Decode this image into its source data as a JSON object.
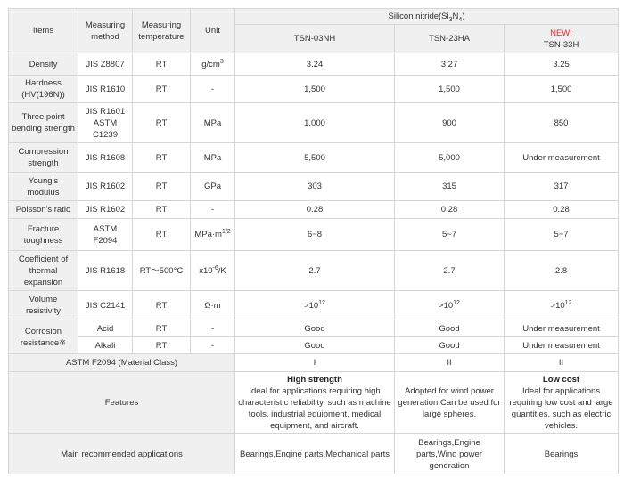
{
  "header": {
    "items": "Items",
    "method": "Measuring method",
    "temperature": "Measuring temperature",
    "unit": "Unit",
    "material_prefix": "Silicon nitride(Si",
    "material_sub1": "3",
    "material_mid": "N",
    "material_sub2": "4",
    "material_suffix": ")",
    "products": [
      {
        "name": "TSN-03NH"
      },
      {
        "name": "TSN-23HA"
      },
      {
        "name": "TSN-33H",
        "badge": "NEW!"
      }
    ]
  },
  "rows": [
    {
      "item": "Density",
      "method": "JIS Z8807",
      "temp": "RT",
      "unit": "g/cm",
      "unit_sup": "3",
      "values": [
        "3.24",
        "3.27",
        "3.25"
      ]
    },
    {
      "item": "Hardness (HV(196N))",
      "method": "JIS R1610",
      "temp": "RT",
      "unit": "-",
      "values": [
        "1,500",
        "1,500",
        "1,500"
      ]
    },
    {
      "item": "Three point bending strength",
      "method": "JIS R1601 ASTM C1239",
      "temp": "RT",
      "unit": "MPa",
      "values": [
        "1,000",
        "900",
        "850"
      ]
    },
    {
      "item": "Compression strength",
      "method": "JIS R1608",
      "temp": "RT",
      "unit": "MPa",
      "values": [
        "5,500",
        "5,000",
        "Under measurement"
      ]
    },
    {
      "item": "Young's modulus",
      "method": "JIS R1602",
      "temp": "RT",
      "unit": "GPa",
      "values": [
        "303",
        "315",
        "317"
      ]
    },
    {
      "item": "Poisson's ratio",
      "method": "JIS R1602",
      "temp": "RT",
      "unit": "-",
      "values": [
        "0.28",
        "0.28",
        "0.28"
      ]
    },
    {
      "item": "Fracture toughness",
      "method": "ASTM F2094",
      "temp": "RT",
      "unit": "MPa·m",
      "unit_sup": "1/2",
      "values": [
        "6~8",
        "5~7",
        "5~7"
      ]
    },
    {
      "item": "Coefficient of thermal expansion",
      "method": "JIS R1618",
      "temp": "RT～500°C",
      "unit": "x10",
      "unit_sup": "-6",
      "unit_suffix": "/K",
      "values": [
        "2.7",
        "2.7",
        "2.8"
      ]
    },
    {
      "item": "Volume resistivity",
      "method": "JIS C2141",
      "temp": "RT",
      "unit": "Ω·m",
      "values": [
        ">10",
        ">10",
        ">10"
      ],
      "value_sup": "12"
    }
  ],
  "corrosion": {
    "item": "Corrosion resistance※",
    "rows": [
      {
        "method": "Acid",
        "temp": "RT",
        "unit": "-",
        "values": [
          "Good",
          "Good",
          "Under measurement"
        ]
      },
      {
        "method": "Alkali",
        "temp": "RT",
        "unit": "-",
        "values": [
          "Good",
          "Good",
          "Under measurement"
        ]
      }
    ]
  },
  "astm": {
    "label": "ASTM F2094 (Material Class)",
    "values": [
      "I",
      "II",
      "II"
    ]
  },
  "features": {
    "label": "Features",
    "values": [
      {
        "title": "High strength",
        "text": "Ideal for applications requiring high characteristic reliability, such as machine tools, industrial equipment, medical equipment, and aircraft."
      },
      {
        "title": "",
        "text": "Adopted for wind power generation.Can be used for large spheres."
      },
      {
        "title": "Low cost",
        "text": "Ideal for applications requiring low cost and large quantities, such as electric vehicles."
      }
    ]
  },
  "applications": {
    "label": "Main recommended applications",
    "values": [
      "Bearings,Engine parts,Mechanical parts",
      "Bearings,Engine parts,Wind power generation",
      "Bearings"
    ]
  }
}
